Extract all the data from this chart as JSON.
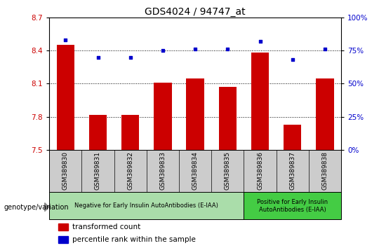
{
  "title": "GDS4024 / 94747_at",
  "samples": [
    "GSM389830",
    "GSM389831",
    "GSM389832",
    "GSM389833",
    "GSM389834",
    "GSM389835",
    "GSM389836",
    "GSM389837",
    "GSM389838"
  ],
  "bar_values": [
    8.45,
    7.82,
    7.82,
    8.11,
    8.15,
    8.07,
    8.38,
    7.73,
    8.15
  ],
  "dot_values": [
    83,
    70,
    70,
    75,
    76,
    76,
    82,
    68,
    76
  ],
  "ylim_left": [
    7.5,
    8.7
  ],
  "ylim_right": [
    0,
    100
  ],
  "yticks_left": [
    7.5,
    7.8,
    8.1,
    8.4,
    8.7
  ],
  "yticks_right": [
    0,
    25,
    50,
    75,
    100
  ],
  "bar_color": "#cc0000",
  "dot_color": "#0000cc",
  "group1_label": "Negative for Early Insulin AutoAntibodies (E-IAA)",
  "group2_label": "Positive for Early Insulin\nAutoAntibodies (E-IAA)",
  "group1_color": "#aaddaa",
  "group2_color": "#44cc44",
  "genotype_label": "genotype/variation",
  "legend_bar_label": "transformed count",
  "legend_dot_label": "percentile rank within the sample",
  "tick_label_color_left": "#cc0000",
  "tick_label_color_right": "#0000cc",
  "bg_color": "#ffffff",
  "xlabel_bg_color": "#cccccc",
  "title_fontsize": 10,
  "tick_fontsize": 7.5,
  "label_fontsize": 7
}
